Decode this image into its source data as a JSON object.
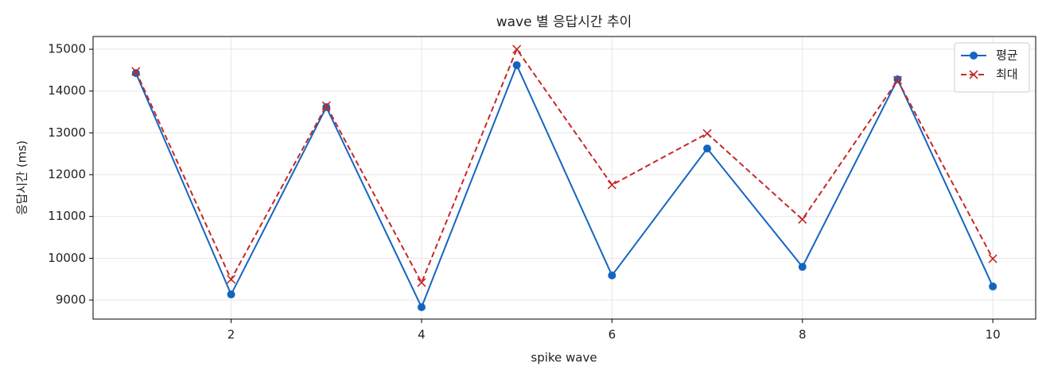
{
  "chart_data": {
    "type": "line",
    "title": "wave 별 응답시간 추이",
    "xlabel": "spike wave",
    "ylabel": "응답시간 (ms)",
    "x": [
      1,
      2,
      3,
      4,
      5,
      6,
      7,
      8,
      9,
      10
    ],
    "series": [
      {
        "name": "평균",
        "color": "#1565c0",
        "marker": "o",
        "linestyle": "solid",
        "values": [
          14430,
          9135,
          13615,
          8830,
          14620,
          9590,
          12625,
          9795,
          14280,
          9325
        ]
      },
      {
        "name": "최대",
        "color": "#c62828",
        "marker": "x",
        "linestyle": "dashed",
        "values": [
          14470,
          9495,
          13650,
          9420,
          15000,
          11755,
          12985,
          10930,
          14260,
          9990
        ]
      }
    ],
    "xlim": [
      0.55,
      10.45
    ],
    "ylim": [
      8545,
      15305
    ],
    "xticks": [
      2,
      4,
      6,
      8,
      10
    ],
    "yticks": [
      9000,
      10000,
      11000,
      12000,
      13000,
      14000,
      15000
    ],
    "grid": true,
    "legend": "upper right"
  }
}
